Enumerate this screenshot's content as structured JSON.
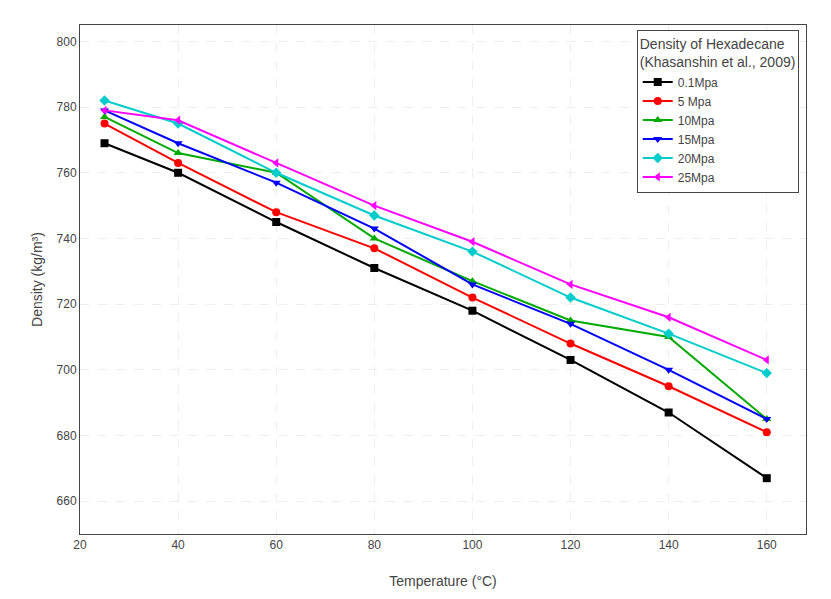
{
  "chart_data": {
    "type": "line",
    "x": [
      25,
      40,
      60,
      80,
      100,
      120,
      140,
      160
    ],
    "series": [
      {
        "name": "0.1Mpa",
        "color": "#000000",
        "marker": "square",
        "values": [
          769,
          760,
          745,
          731,
          718,
          703,
          687,
          667
        ]
      },
      {
        "name": "5 Mpa",
        "color": "#ff0000",
        "marker": "circle",
        "values": [
          775,
          763,
          748,
          737,
          722,
          708,
          695,
          681
        ]
      },
      {
        "name": "10Mpa",
        "color": "#00aa00",
        "marker": "triangle-up",
        "values": [
          777,
          766,
          760,
          740,
          727,
          715,
          710,
          685
        ]
      },
      {
        "name": "15Mpa",
        "color": "#0000ff",
        "marker": "triangle-down",
        "values": [
          779,
          769,
          757,
          743,
          726,
          714,
          700,
          685
        ]
      },
      {
        "name": "20Mpa",
        "color": "#00cccc",
        "marker": "diamond",
        "values": [
          782,
          775,
          760,
          747,
          736,
          722,
          711,
          699
        ]
      },
      {
        "name": "25Mpa",
        "color": "#ff00ff",
        "marker": "triangle-left",
        "values": [
          779,
          776,
          763,
          750,
          739,
          726,
          716,
          703
        ]
      }
    ],
    "xlabel": "Temperature (°C)",
    "ylabel": "Density (kg/m³)",
    "legend_title": "Density of Hexadecane\n(Khasanshin et al., 2009)",
    "legend": "upper right",
    "xlim": [
      20,
      168
    ],
    "ylim": [
      650,
      805
    ],
    "xticks": [
      20,
      40,
      60,
      80,
      100,
      120,
      140,
      160
    ],
    "yticks": [
      660,
      680,
      700,
      720,
      740,
      760,
      780,
      800
    ],
    "grid": true
  }
}
